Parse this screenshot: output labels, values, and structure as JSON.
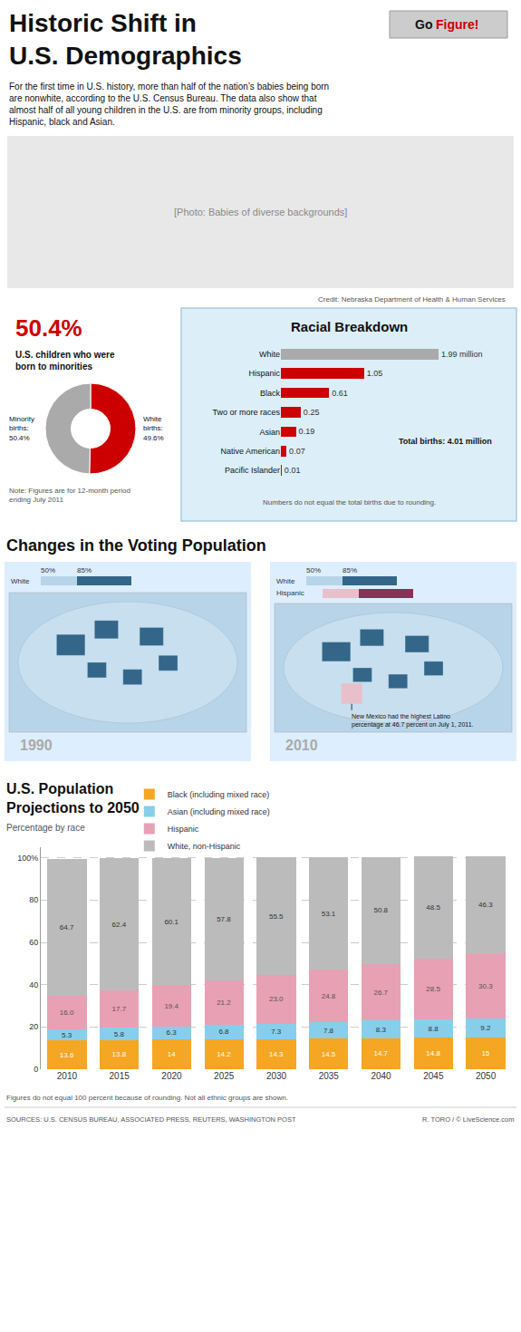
{
  "chart_data": [
    {
      "type": "pie",
      "title": "Historic Shift in\nU.S. Demographics",
      "subtitle": "For the first time in U.S. history, more than half of the nation’s babies being born\nare nonwhite, according to the U.S. Census Bureau. The data also show that\nalmost half of all young children in the U.S. are from minority groups, including\nHispanic, black and Asian.",
      "annotations": [
        "Go",
        "Figure!",
        "[Photo: Babies of diverse backgrounds]",
        "Credit: Nebraska Department of Health & Human Services",
        "50.4%",
        "U.S. children who were\nborn to minorities",
        "Note: Figures are for 12-month period\nending July 2011"
      ],
      "values": [
        50.4,
        49.6
      ],
      "value_labels": [
        "Minority\nbirths:\n50.4%",
        "White\nbirths:\n49.6%"
      ],
      "colors": [
        "#cc0000",
        "#aaaaaa"
      ],
      "data_labels": true
    },
    {
      "type": "bar",
      "orientation": "horizontal",
      "title": "Racial Breakdown",
      "categories": [
        "White",
        "Hispanic",
        "Black",
        "Two or more races",
        "Asian",
        "Native American",
        "Pacific Islander"
      ],
      "values": [
        1.99,
        1.05,
        0.61,
        0.25,
        0.19,
        0.07,
        0.01
      ],
      "value_labels": [
        "1.99 million",
        "1.05",
        "0.61",
        "0.25",
        "0.19",
        "0.07",
        "0.01"
      ],
      "colors": [
        "#aaaaaa",
        "#cc0000",
        "#cc0000",
        "#cc0000",
        "#cc0000",
        "#cc0000",
        "#cc0000"
      ],
      "data_labels": true,
      "xlim": [
        0,
        2.6865
      ],
      "tick_labels": "y",
      "grid": false,
      "annotations": [
        "Total births: 4.01 million",
        "Numbers do not equal the total births due to rounding."
      ]
    },
    {
      "type": "map",
      "title": "Changes in the Voting Population",
      "annotations": [
        "1990",
        "2010",
        "White",
        "Hispanic",
        "50%",
        "85%",
        "New Mexico had the highest Latino\npercentage at 46.7 percent on July 1, 2011."
      ]
    },
    {
      "type": "bar",
      "stacked": true,
      "title": "U.S. Population\nProjections to 2050",
      "subtitle": "Percentage by race",
      "categories": [
        "2010",
        "2015",
        "2020",
        "2025",
        "2030",
        "2035",
        "2040",
        "2045",
        "2050"
      ],
      "series": [
        {
          "name": "Black (including mixed race)",
          "color": "#f5a623",
          "values": [
            13.6,
            13.8,
            14,
            14.2,
            14.3,
            14.5,
            14.7,
            14.8,
            15
          ]
        },
        {
          "name": "Asian (including mixed race)",
          "color": "#87ceeb",
          "values": [
            5.3,
            5.8,
            6.3,
            6.8,
            7.3,
            7.8,
            8.3,
            8.8,
            9.2
          ]
        },
        {
          "name": "Hispanic",
          "color": "#e8a0b4",
          "values": [
            16.0,
            17.7,
            19.4,
            21.2,
            23.0,
            24.8,
            26.7,
            28.5,
            30.3
          ],
          "value_labels": [
            "16.0",
            "17.7",
            "19.4",
            "21.2",
            "23.0",
            "24.8",
            "26.7",
            "28.5",
            "30.3"
          ]
        },
        {
          "name": "White, non-Hispanic",
          "color": "#bbbbbb",
          "values": [
            64.7,
            62.4,
            60.1,
            57.8,
            55.5,
            53.1,
            50.8,
            48.5,
            46.3
          ]
        }
      ],
      "ylim": [
        0,
        105
      ],
      "yticks": [
        0,
        20,
        40,
        60,
        80,
        {
          "value": 100,
          "label": "100%"
        }
      ],
      "grid": true,
      "data_labels": true,
      "legend": "top",
      "annotations": [
        "Figures do not equal 100 percent because of rounding. Not all ethnic groups are shown.",
        "SOURCES: U.S. CENSUS BUREAU, ASSOCIATED PRESS, REUTERS, WASHINGTON POST",
        "R. TORO / © LiveScience.com"
      ]
    }
  ]
}
